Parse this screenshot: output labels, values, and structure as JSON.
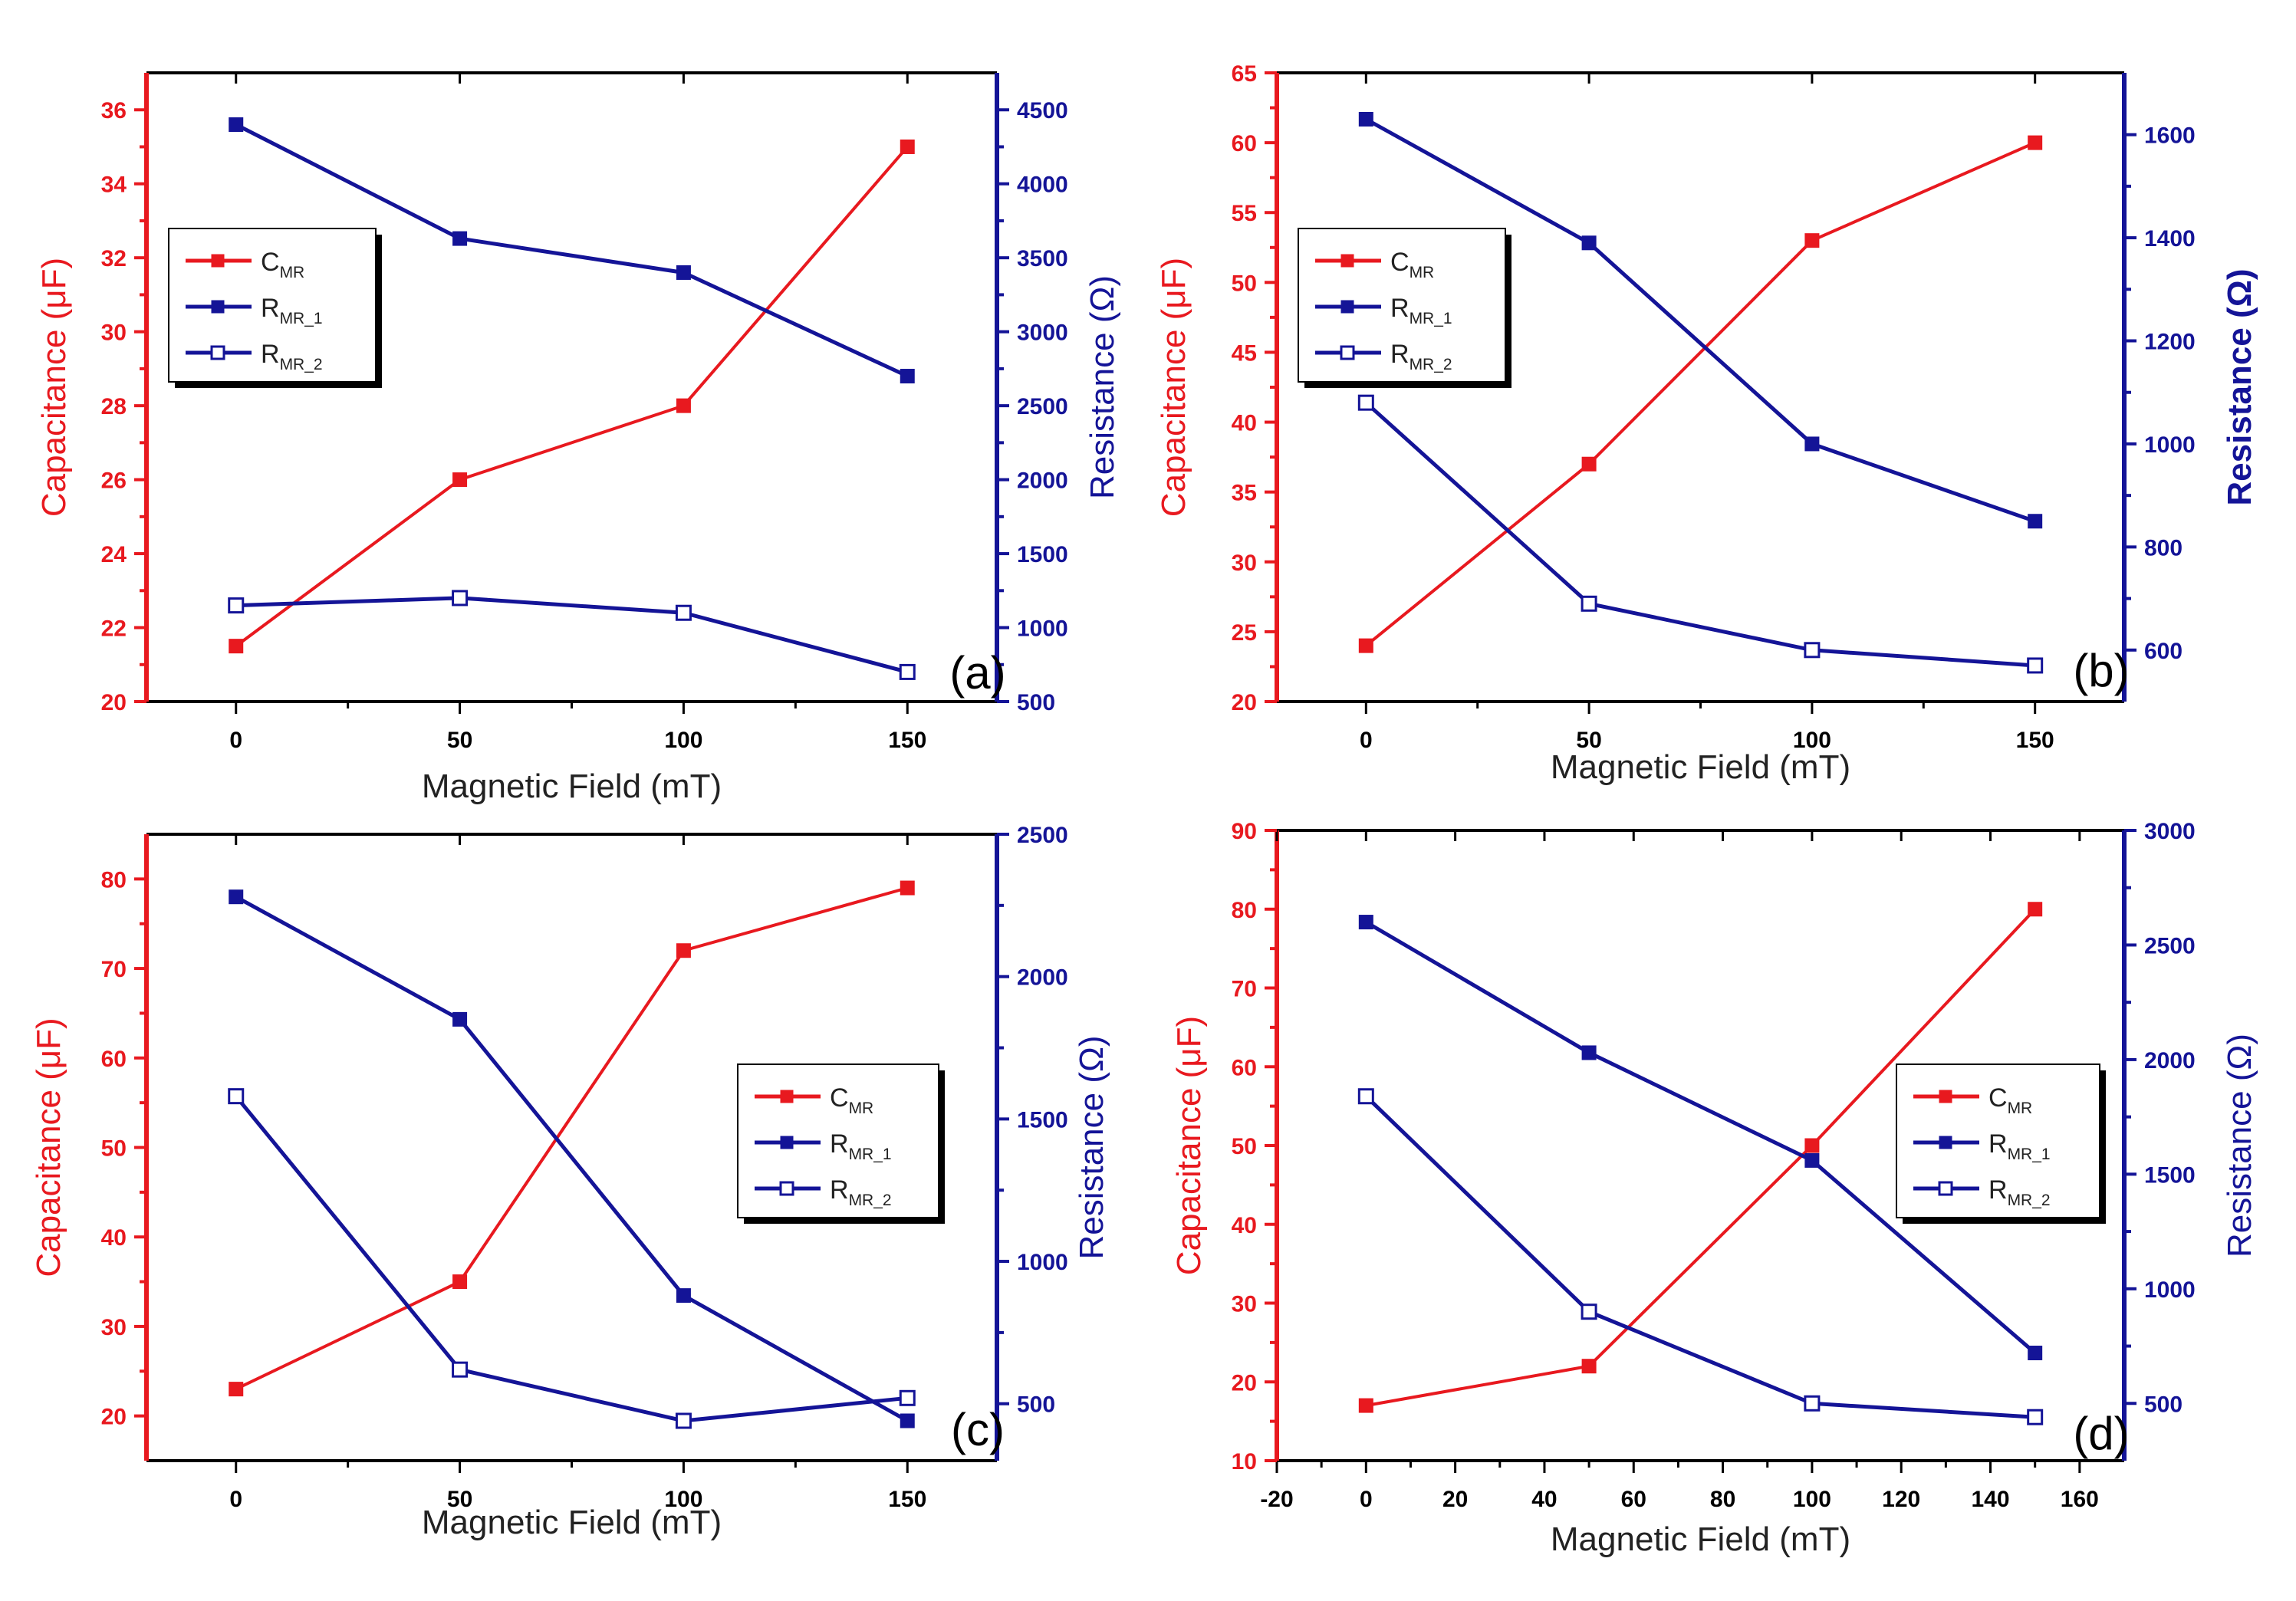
{
  "colors": {
    "capacitance": "#e8191f",
    "resistance": "#141497",
    "text": "#222222"
  },
  "chart_data": [
    {
      "panel": "(a)",
      "type": "line",
      "xlabel": "Magnetic Field (mT)",
      "ylabel_left": "Capacitance (μF)",
      "ylabel_right": "Resistance (Ω)",
      "x_ticks": [
        "0",
        "50",
        "100",
        "150"
      ],
      "x_tick_values": [
        0,
        50,
        100,
        150
      ],
      "xlim": [
        -20,
        170
      ],
      "y_left_ticks": [
        "20",
        "22",
        "24",
        "26",
        "28",
        "30",
        "32",
        "34",
        "36"
      ],
      "y_left_values": [
        20,
        22,
        24,
        26,
        28,
        30,
        32,
        34,
        36
      ],
      "ylim_left": [
        20,
        37
      ],
      "y_right_ticks": [
        "500",
        "1000",
        "1500",
        "2000",
        "2500",
        "3000",
        "3500",
        "4000",
        "4500"
      ],
      "y_right_values": [
        500,
        1000,
        1500,
        2000,
        2500,
        3000,
        3500,
        4000,
        4500
      ],
      "ylim_right": [
        500,
        4750
      ],
      "legend_position": "upper-left",
      "series": [
        {
          "key": "C",
          "label": "C",
          "subscript": "MR",
          "axis": "left",
          "marker": "filled",
          "x": [
            0,
            50,
            100,
            150
          ],
          "values": [
            21.5,
            26,
            28,
            35
          ]
        },
        {
          "key": "R1",
          "label": "R",
          "subscript": "MR_1",
          "axis": "right",
          "marker": "filled",
          "x": [
            0,
            50,
            100,
            150
          ],
          "values": [
            4400,
            3630,
            3400,
            2700
          ]
        },
        {
          "key": "R2",
          "label": "R",
          "subscript": "MR_2",
          "axis": "right",
          "marker": "open",
          "x": [
            0,
            50,
            100,
            150
          ],
          "values": [
            1150,
            1200,
            1100,
            700
          ]
        }
      ]
    },
    {
      "panel": "(b)",
      "type": "line",
      "xlabel": "Magnetic Field (mT)",
      "ylabel_left": "Capacitance (μF)",
      "ylabel_right": "Resistance (Ω)",
      "x_ticks": [
        "0",
        "50",
        "100",
        "150"
      ],
      "x_tick_values": [
        0,
        50,
        100,
        150
      ],
      "xlim": [
        -20,
        170
      ],
      "y_left_ticks": [
        "20",
        "25",
        "30",
        "35",
        "40",
        "45",
        "50",
        "55",
        "60",
        "65"
      ],
      "y_left_values": [
        20,
        25,
        30,
        35,
        40,
        45,
        50,
        55,
        60,
        65
      ],
      "ylim_left": [
        20,
        65
      ],
      "y_right_ticks": [
        "600",
        "800",
        "1000",
        "1200",
        "1400",
        "1600"
      ],
      "y_right_values": [
        600,
        800,
        1000,
        1200,
        1400,
        1600
      ],
      "ylim_right": [
        500,
        1720
      ],
      "legend_position": "upper-left",
      "series": [
        {
          "key": "C",
          "label": "C",
          "subscript": "MR",
          "axis": "left",
          "marker": "filled",
          "x": [
            0,
            50,
            100,
            150
          ],
          "values": [
            24,
            37,
            53,
            60
          ]
        },
        {
          "key": "R1",
          "label": "R",
          "subscript": "MR_1",
          "axis": "right",
          "marker": "filled",
          "x": [
            0,
            50,
            100,
            150
          ],
          "values": [
            1630,
            1390,
            1000,
            850
          ]
        },
        {
          "key": "R2",
          "label": "R",
          "subscript": "MR_2",
          "axis": "right",
          "marker": "open",
          "x": [
            0,
            50,
            100,
            150
          ],
          "values": [
            1080,
            690,
            600,
            570
          ]
        }
      ]
    },
    {
      "panel": "(c)",
      "type": "line",
      "xlabel": "Magnetic Field (mT)",
      "ylabel_left": "Capacitance (μF)",
      "ylabel_right": "Resistance (Ω)",
      "x_ticks": [
        "0",
        "50",
        "100",
        "150"
      ],
      "x_tick_values": [
        0,
        50,
        100,
        150
      ],
      "xlim": [
        -20,
        170
      ],
      "y_left_ticks": [
        "20",
        "30",
        "40",
        "50",
        "60",
        "70",
        "80"
      ],
      "y_left_values": [
        20,
        30,
        40,
        50,
        60,
        70,
        80
      ],
      "ylim_left": [
        15,
        85
      ],
      "y_right_ticks": [
        "500",
        "1000",
        "1500",
        "2000",
        "2500"
      ],
      "y_right_values": [
        500,
        1000,
        1500,
        2000,
        2500
      ],
      "ylim_right": [
        300,
        2500
      ],
      "legend_position": "right",
      "series": [
        {
          "key": "C",
          "label": "C",
          "subscript": "MR",
          "axis": "left",
          "marker": "filled",
          "x": [
            0,
            50,
            100,
            150
          ],
          "values": [
            23,
            35,
            72,
            79
          ]
        },
        {
          "key": "R1",
          "label": "R",
          "subscript": "MR_1",
          "axis": "right",
          "marker": "filled",
          "x": [
            0,
            50,
            100,
            150
          ],
          "values": [
            2280,
            1850,
            880,
            440
          ]
        },
        {
          "key": "R2",
          "label": "R",
          "subscript": "MR_2",
          "axis": "right",
          "marker": "open",
          "x": [
            0,
            50,
            100,
            150
          ],
          "values": [
            1580,
            620,
            440,
            520
          ]
        }
      ]
    },
    {
      "panel": "(d)",
      "type": "line",
      "xlabel": "Magnetic Field (mT)",
      "ylabel_left": "Capacitance (μF)",
      "ylabel_right": "Resistance (Ω)",
      "x_ticks": [
        "-20",
        "0",
        "20",
        "40",
        "60",
        "80",
        "100",
        "120",
        "140",
        "160"
      ],
      "x_tick_values": [
        -20,
        0,
        20,
        40,
        60,
        80,
        100,
        120,
        140,
        160
      ],
      "xlim": [
        -20,
        170
      ],
      "y_left_ticks": [
        "10",
        "20",
        "30",
        "40",
        "50",
        "60",
        "70",
        "80",
        "90"
      ],
      "y_left_values": [
        10,
        20,
        30,
        40,
        50,
        60,
        70,
        80,
        90
      ],
      "ylim_left": [
        10,
        90
      ],
      "y_right_ticks": [
        "500",
        "1000",
        "1500",
        "2000",
        "2500",
        "3000"
      ],
      "y_right_values": [
        500,
        1000,
        1500,
        2000,
        2500,
        3000
      ],
      "ylim_right": [
        250,
        3000
      ],
      "legend_position": "right",
      "series": [
        {
          "key": "C",
          "label": "C",
          "subscript": "MR",
          "axis": "left",
          "marker": "filled",
          "x": [
            0,
            50,
            100,
            150
          ],
          "values": [
            17,
            22,
            50,
            80
          ]
        },
        {
          "key": "R1",
          "label": "R",
          "subscript": "MR_1",
          "axis": "right",
          "marker": "filled",
          "x": [
            0,
            50,
            100,
            150
          ],
          "values": [
            2600,
            2030,
            1560,
            720
          ]
        },
        {
          "key": "R2",
          "label": "R",
          "subscript": "MR_2",
          "axis": "right",
          "marker": "open",
          "x": [
            0,
            50,
            100,
            150
          ],
          "values": [
            1840,
            900,
            500,
            440
          ]
        }
      ]
    }
  ]
}
